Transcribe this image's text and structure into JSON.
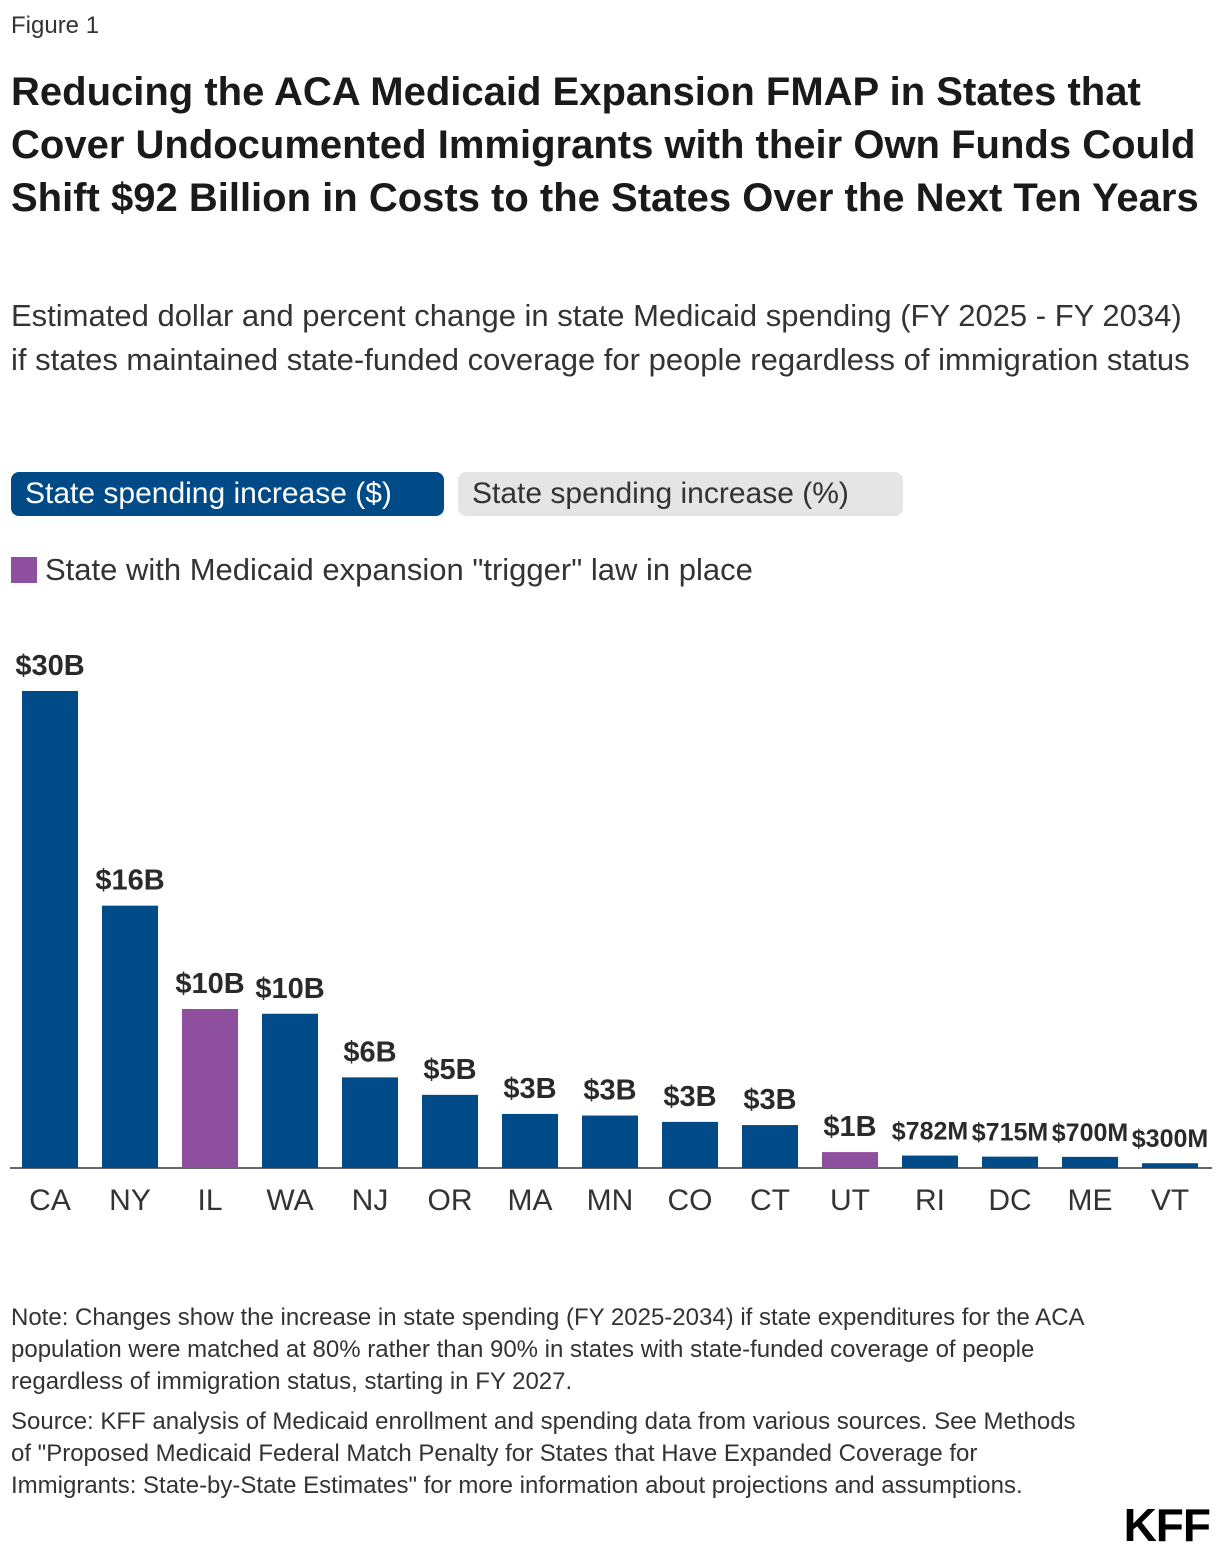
{
  "figure_label": "Figure 1",
  "title": "Reducing the ACA Medicaid Expansion FMAP in States that Cover Undocumented Immigrants with their Own Funds Could Shift $92 Billion in Costs to the States Over the Next Ten Years",
  "subtitle": "Estimated dollar and percent change in state Medicaid spending (FY 2025 - FY 2034) if states maintained state-funded coverage for people regardless of immigration status",
  "toggles": {
    "active_label": "State spending increase ($)",
    "inactive_label": "State spending increase (%)"
  },
  "legend": {
    "label": "State with Medicaid expansion \"trigger\" law in place",
    "color": "#8e4f9e"
  },
  "colors": {
    "default_bar": "#004a87",
    "trigger_bar": "#8e4f9e",
    "toggle_active": "#004a87"
  },
  "chart_data": {
    "type": "bar",
    "title": "",
    "xlabel": "",
    "ylabel": "",
    "ylim": [
      0,
      30
    ],
    "unit": "Billion USD",
    "categories": [
      "CA",
      "NY",
      "IL",
      "WA",
      "NJ",
      "OR",
      "MA",
      "MN",
      "CO",
      "CT",
      "UT",
      "RI",
      "DC",
      "ME",
      "VT"
    ],
    "values": [
      30,
      16.5,
      10,
      9.7,
      5.7,
      4.6,
      3.4,
      3.3,
      2.9,
      2.7,
      1.0,
      0.782,
      0.715,
      0.7,
      0.3
    ],
    "labels": [
      "$30B",
      "$16B",
      "$10B",
      "$10B",
      "$6B",
      "$5B",
      "$3B",
      "$3B",
      "$3B",
      "$3B",
      "$1B",
      "$782M",
      "$715M",
      "$700M",
      "$300M"
    ],
    "trigger_law": [
      false,
      false,
      true,
      false,
      false,
      false,
      false,
      false,
      false,
      false,
      true,
      false,
      false,
      false,
      false
    ]
  },
  "notes": {
    "note": "Note: Changes show the increase in state spending (FY 2025-2034) if state expenditures for the ACA population were matched at 80% rather than 90% in states with state-funded coverage of people regardless of immigration status, starting in FY 2027.",
    "source": "Source: KFF analysis of Medicaid enrollment and spending data from various sources. See Methods of \"Proposed Medicaid Federal Match Penalty for States that Have Expanded Coverage for Immigrants: State-by-State Estimates\" for more information about projections and assumptions."
  },
  "logo": "KFF"
}
